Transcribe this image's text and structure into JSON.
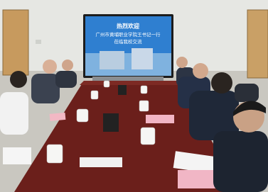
{
  "screen": {
    "heading": "热烈欢迎",
    "line1": "广州市黄埔职业学院王书记一行",
    "line2": "莅临我校交流"
  }
}
